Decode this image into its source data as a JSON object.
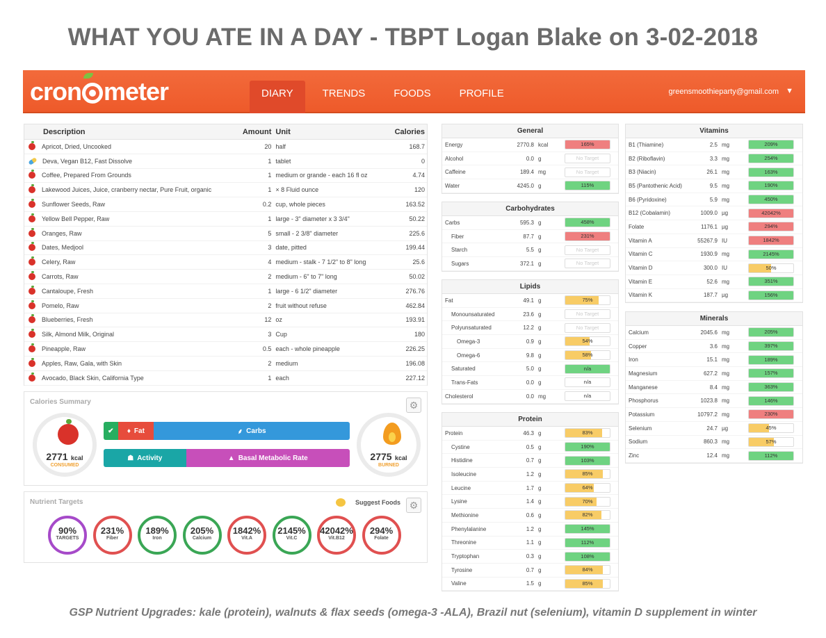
{
  "page": {
    "title": "WHAT YOU ATE IN A DAY - TBPT Logan Blake on 3-02-2018",
    "footer": "GSP Nutrient Upgrades: kale (protein), walnuts & flax seeds (omega-3 -ALA), Brazil nut (selenium), vitamin D supplement in winter"
  },
  "navbar": {
    "logo_left": "cron",
    "logo_right": "meter",
    "tabs": [
      "DIARY",
      "TRENDS",
      "FOODS",
      "PROFILE"
    ],
    "active_tab": "DIARY",
    "email": "greensmoothieparty@gmail.com",
    "caret": "▼"
  },
  "diary": {
    "headers": [
      "Description",
      "Amount",
      "Unit",
      "Calories"
    ],
    "rows": [
      {
        "icon": "apple",
        "desc": "Apricot, Dried, Uncooked",
        "amount": "20",
        "unit": "half",
        "cal": "168.7"
      },
      {
        "icon": "pill",
        "desc": "Deva, Vegan B12, Fast Dissolve",
        "amount": "1",
        "unit": "tablet",
        "cal": "0"
      },
      {
        "icon": "apple",
        "desc": "Coffee, Prepared From Grounds",
        "amount": "1",
        "unit": "medium or grande - each 16 fl oz",
        "cal": "4.74"
      },
      {
        "icon": "apple",
        "desc": "Lakewood Juices, Juice, cranberry nectar, Pure Fruit, organic",
        "amount": "1",
        "unit": "× 8 Fluid ounce",
        "cal": "120"
      },
      {
        "icon": "apple",
        "desc": "Sunflower Seeds, Raw",
        "amount": "0.2",
        "unit": "cup, whole pieces",
        "cal": "163.52"
      },
      {
        "icon": "apple",
        "desc": "Yellow Bell Pepper, Raw",
        "amount": "1",
        "unit": "large - 3\" diameter x 3 3/4\"",
        "cal": "50.22"
      },
      {
        "icon": "apple",
        "desc": "Oranges, Raw",
        "amount": "5",
        "unit": "small - 2 3/8\" diameter",
        "cal": "225.6"
      },
      {
        "icon": "apple",
        "desc": "Dates, Medjool",
        "amount": "3",
        "unit": "date, pitted",
        "cal": "199.44"
      },
      {
        "icon": "apple",
        "desc": "Celery, Raw",
        "amount": "4",
        "unit": "medium - stalk - 7 1/2\" to 8\" long",
        "cal": "25.6"
      },
      {
        "icon": "apple",
        "desc": "Carrots, Raw",
        "amount": "2",
        "unit": "medium - 6\" to 7\" long",
        "cal": "50.02"
      },
      {
        "icon": "apple",
        "desc": "Cantaloupe, Fresh",
        "amount": "1",
        "unit": "large - 6 1/2\" diameter",
        "cal": "276.76"
      },
      {
        "icon": "apple",
        "desc": "Pomelo, Raw",
        "amount": "2",
        "unit": "fruit without refuse",
        "cal": "462.84"
      },
      {
        "icon": "apple",
        "desc": "Blueberries, Fresh",
        "amount": "12",
        "unit": "oz",
        "cal": "193.91"
      },
      {
        "icon": "apple",
        "desc": "Silk, Almond Milk, Original",
        "amount": "3",
        "unit": "Cup",
        "cal": "180"
      },
      {
        "icon": "apple",
        "desc": "Pineapple, Raw",
        "amount": "0.5",
        "unit": "each - whole pineapple",
        "cal": "226.25"
      },
      {
        "icon": "apple",
        "desc": "Apples, Raw, Gala, with Skin",
        "amount": "2",
        "unit": "medium",
        "cal": "196.08"
      },
      {
        "icon": "apple",
        "desc": "Avocado, Black Skin, California Type",
        "amount": "1",
        "unit": "each",
        "cal": "227.12"
      }
    ]
  },
  "calories_summary": {
    "title": "Calories Summary",
    "consumed_value": "2771",
    "consumed_unit": "kcal",
    "consumed_label": "CONSUMED",
    "burned_value": "2775",
    "burned_unit": "kcal",
    "burned_label": "BURNED",
    "bar1": {
      "fat_label": "Fat",
      "carbs_label": "Carbs",
      "protein_fraction": 0.058,
      "fat_fraction": 0.146,
      "carbs_fraction": 0.796
    },
    "bar2": {
      "activity_label": "Activity",
      "bmr_label": "Basal Metabolic Rate",
      "activity_fraction": 0.335,
      "bmr_fraction": 0.665
    },
    "colors": {
      "protein": "#27ae60",
      "fat": "#e74c3c",
      "carbs": "#3498db",
      "activity": "#1aa6a6",
      "bmr": "#c74fba"
    }
  },
  "nutrient_targets": {
    "title": "Nutrient Targets",
    "suggest_label": "Suggest Foods",
    "items": [
      {
        "pct": "90%",
        "label": "TARGETS",
        "color": "#a64ac9"
      },
      {
        "pct": "231%",
        "label": "Fiber",
        "color": "#e05050"
      },
      {
        "pct": "189%",
        "label": "Iron",
        "color": "#3aa655"
      },
      {
        "pct": "205%",
        "label": "Calcium",
        "color": "#3aa655"
      },
      {
        "pct": "1842%",
        "label": "Vit.A",
        "color": "#e05050"
      },
      {
        "pct": "2145%",
        "label": "Vit.C",
        "color": "#3aa655"
      },
      {
        "pct": "42042%",
        "label": "Vit.B12",
        "color": "#e05050"
      },
      {
        "pct": "294%",
        "label": "Folate",
        "color": "#e05050"
      }
    ]
  },
  "bar_colors": {
    "red": "#ef7f7f",
    "green": "#6fd381",
    "yellow": "#f8cc66"
  },
  "general": {
    "title": "General",
    "rows": [
      {
        "name": "Energy",
        "amt": "2770.8",
        "unit": "kcal",
        "pct": "165%",
        "fill": 1,
        "color": "red",
        "indent": 0
      },
      {
        "name": "Alcohol",
        "amt": "0.0",
        "unit": "g",
        "pct": "No Target",
        "fill": 0,
        "color": "none",
        "indent": 0
      },
      {
        "name": "Caffeine",
        "amt": "189.4",
        "unit": "mg",
        "pct": "No Target",
        "fill": 0,
        "color": "none",
        "indent": 0
      },
      {
        "name": "Water",
        "amt": "4245.0",
        "unit": "g",
        "pct": "115%",
        "fill": 1,
        "color": "green",
        "indent": 0
      }
    ]
  },
  "carbohydrates": {
    "title": "Carbohydrates",
    "rows": [
      {
        "name": "Carbs",
        "amt": "595.3",
        "unit": "g",
        "pct": "458%",
        "fill": 1,
        "color": "green",
        "indent": 0
      },
      {
        "name": "Fiber",
        "amt": "87.7",
        "unit": "g",
        "pct": "231%",
        "fill": 1,
        "color": "red",
        "indent": 1
      },
      {
        "name": "Starch",
        "amt": "5.5",
        "unit": "g",
        "pct": "No Target",
        "fill": 0,
        "color": "none",
        "indent": 1
      },
      {
        "name": "Sugars",
        "amt": "372.1",
        "unit": "g",
        "pct": "No Target",
        "fill": 0,
        "color": "none",
        "indent": 1
      }
    ]
  },
  "lipids": {
    "title": "Lipids",
    "rows": [
      {
        "name": "Fat",
        "amt": "49.1",
        "unit": "g",
        "pct": "75%",
        "fill": 0.75,
        "color": "yellow",
        "indent": 0
      },
      {
        "name": "Monounsaturated",
        "amt": "23.6",
        "unit": "g",
        "pct": "No Target",
        "fill": 0,
        "color": "none",
        "indent": 1
      },
      {
        "name": "Polyunsaturated",
        "amt": "12.2",
        "unit": "g",
        "pct": "No Target",
        "fill": 0,
        "color": "none",
        "indent": 1
      },
      {
        "name": "Omega-3",
        "amt": "0.9",
        "unit": "g",
        "pct": "54%",
        "fill": 0.54,
        "color": "yellow",
        "indent": 2
      },
      {
        "name": "Omega-6",
        "amt": "9.8",
        "unit": "g",
        "pct": "58%",
        "fill": 0.58,
        "color": "yellow",
        "indent": 2
      },
      {
        "name": "Saturated",
        "amt": "5.0",
        "unit": "g",
        "pct": "n/a",
        "fill": 1,
        "color": "green",
        "indent": 1
      },
      {
        "name": "Trans-Fats",
        "amt": "0.0",
        "unit": "g",
        "pct": "n/a",
        "fill": 0,
        "color": "none",
        "indent": 1
      },
      {
        "name": "Cholesterol",
        "amt": "0.0",
        "unit": "mg",
        "pct": "n/a",
        "fill": 0,
        "color": "none",
        "indent": 0
      }
    ]
  },
  "protein": {
    "title": "Protein",
    "rows": [
      {
        "name": "Protein",
        "amt": "46.3",
        "unit": "g",
        "pct": "83%",
        "fill": 0.83,
        "color": "yellow",
        "indent": 0
      },
      {
        "name": "Cystine",
        "amt": "0.5",
        "unit": "g",
        "pct": "190%",
        "fill": 1,
        "color": "green",
        "indent": 1
      },
      {
        "name": "Histidine",
        "amt": "0.7",
        "unit": "g",
        "pct": "103%",
        "fill": 1,
        "color": "green",
        "indent": 1
      },
      {
        "name": "Isoleucine",
        "amt": "1.2",
        "unit": "g",
        "pct": "85%",
        "fill": 0.85,
        "color": "yellow",
        "indent": 1
      },
      {
        "name": "Leucine",
        "amt": "1.7",
        "unit": "g",
        "pct": "64%",
        "fill": 0.64,
        "color": "yellow",
        "indent": 1
      },
      {
        "name": "Lysine",
        "amt": "1.4",
        "unit": "g",
        "pct": "70%",
        "fill": 0.7,
        "color": "yellow",
        "indent": 1
      },
      {
        "name": "Methionine",
        "amt": "0.6",
        "unit": "g",
        "pct": "82%",
        "fill": 0.82,
        "color": "yellow",
        "indent": 1
      },
      {
        "name": "Phenylalanine",
        "amt": "1.2",
        "unit": "g",
        "pct": "145%",
        "fill": 1,
        "color": "green",
        "indent": 1
      },
      {
        "name": "Threonine",
        "amt": "1.1",
        "unit": "g",
        "pct": "112%",
        "fill": 1,
        "color": "green",
        "indent": 1
      },
      {
        "name": "Tryptophan",
        "amt": "0.3",
        "unit": "g",
        "pct": "108%",
        "fill": 1,
        "color": "green",
        "indent": 1
      },
      {
        "name": "Tyrosine",
        "amt": "0.7",
        "unit": "g",
        "pct": "84%",
        "fill": 0.84,
        "color": "yellow",
        "indent": 1
      },
      {
        "name": "Valine",
        "amt": "1.5",
        "unit": "g",
        "pct": "85%",
        "fill": 0.85,
        "color": "yellow",
        "indent": 1
      }
    ]
  },
  "vitamins": {
    "title": "Vitamins",
    "rows": [
      {
        "name": "B1 (Thiamine)",
        "amt": "2.5",
        "unit": "mg",
        "pct": "209%",
        "fill": 1,
        "color": "green",
        "indent": 0
      },
      {
        "name": "B2 (Riboflavin)",
        "amt": "3.3",
        "unit": "mg",
        "pct": "254%",
        "fill": 1,
        "color": "green",
        "indent": 0
      },
      {
        "name": "B3 (Niacin)",
        "amt": "26.1",
        "unit": "mg",
        "pct": "163%",
        "fill": 1,
        "color": "green",
        "indent": 0
      },
      {
        "name": "B5 (Pantothenic Acid)",
        "amt": "9.5",
        "unit": "mg",
        "pct": "190%",
        "fill": 1,
        "color": "green",
        "indent": 0
      },
      {
        "name": "B6 (Pyridoxine)",
        "amt": "5.9",
        "unit": "mg",
        "pct": "450%",
        "fill": 1,
        "color": "green",
        "indent": 0
      },
      {
        "name": "B12 (Cobalamin)",
        "amt": "1009.0",
        "unit": "µg",
        "pct": "42042%",
        "fill": 1,
        "color": "red",
        "indent": 0
      },
      {
        "name": "Folate",
        "amt": "1176.1",
        "unit": "µg",
        "pct": "294%",
        "fill": 1,
        "color": "red",
        "indent": 0
      },
      {
        "name": "Vitamin A",
        "amt": "55267.9",
        "unit": "IU",
        "pct": "1842%",
        "fill": 1,
        "color": "red",
        "indent": 0
      },
      {
        "name": "Vitamin C",
        "amt": "1930.9",
        "unit": "mg",
        "pct": "2145%",
        "fill": 1,
        "color": "green",
        "indent": 0
      },
      {
        "name": "Vitamin D",
        "amt": "300.0",
        "unit": "IU",
        "pct": "50%",
        "fill": 0.5,
        "color": "yellow",
        "indent": 0
      },
      {
        "name": "Vitamin E",
        "amt": "52.6",
        "unit": "mg",
        "pct": "351%",
        "fill": 1,
        "color": "green",
        "indent": 0
      },
      {
        "name": "Vitamin K",
        "amt": "187.7",
        "unit": "µg",
        "pct": "156%",
        "fill": 1,
        "color": "green",
        "indent": 0
      }
    ]
  },
  "minerals": {
    "title": "Minerals",
    "rows": [
      {
        "name": "Calcium",
        "amt": "2045.6",
        "unit": "mg",
        "pct": "205%",
        "fill": 1,
        "color": "green",
        "indent": 0
      },
      {
        "name": "Copper",
        "amt": "3.6",
        "unit": "mg",
        "pct": "397%",
        "fill": 1,
        "color": "green",
        "indent": 0
      },
      {
        "name": "Iron",
        "amt": "15.1",
        "unit": "mg",
        "pct": "189%",
        "fill": 1,
        "color": "green",
        "indent": 0
      },
      {
        "name": "Magnesium",
        "amt": "627.2",
        "unit": "mg",
        "pct": "157%",
        "fill": 1,
        "color": "green",
        "indent": 0
      },
      {
        "name": "Manganese",
        "amt": "8.4",
        "unit": "mg",
        "pct": "363%",
        "fill": 1,
        "color": "green",
        "indent": 0
      },
      {
        "name": "Phosphorus",
        "amt": "1023.8",
        "unit": "mg",
        "pct": "146%",
        "fill": 1,
        "color": "green",
        "indent": 0
      },
      {
        "name": "Potassium",
        "amt": "10797.2",
        "unit": "mg",
        "pct": "230%",
        "fill": 1,
        "color": "red",
        "indent": 0
      },
      {
        "name": "Selenium",
        "amt": "24.7",
        "unit": "µg",
        "pct": "45%",
        "fill": 0.45,
        "color": "yellow",
        "indent": 0
      },
      {
        "name": "Sodium",
        "amt": "860.3",
        "unit": "mg",
        "pct": "57%",
        "fill": 0.57,
        "color": "yellow",
        "indent": 0
      },
      {
        "name": "Zinc",
        "amt": "12.4",
        "unit": "mg",
        "pct": "112%",
        "fill": 1,
        "color": "green",
        "indent": 0
      }
    ]
  }
}
